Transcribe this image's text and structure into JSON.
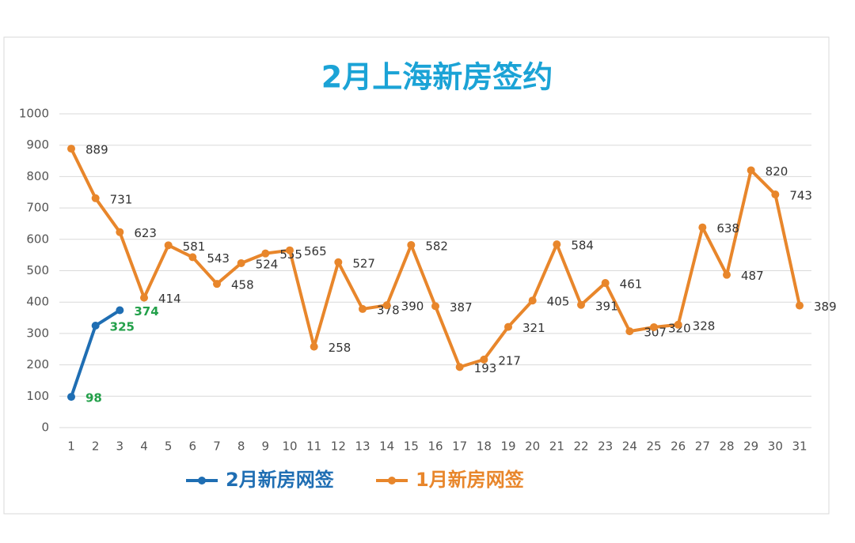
{
  "chart_data": {
    "type": "line",
    "title": "2月上海新房签约",
    "categories": [
      "1",
      "2",
      "3",
      "4",
      "5",
      "6",
      "7",
      "8",
      "9",
      "10",
      "11",
      "12",
      "13",
      "14",
      "15",
      "16",
      "17",
      "18",
      "19",
      "20",
      "21",
      "22",
      "23",
      "24",
      "25",
      "26",
      "27",
      "28",
      "29",
      "30",
      "31"
    ],
    "series": [
      {
        "name": "2月新房网签",
        "color": "#1f6eb3",
        "label_color": "#23a04a",
        "values": [
          98,
          325,
          374,
          null,
          null,
          null,
          null,
          null,
          null,
          null,
          null,
          null,
          null,
          null,
          null,
          null,
          null,
          null,
          null,
          null,
          null,
          null,
          null,
          null,
          null,
          null,
          null,
          null,
          null,
          null,
          null
        ]
      },
      {
        "name": "1月新房网签",
        "color": "#e8862b",
        "label_color": "#333333",
        "values": [
          889,
          731,
          623,
          414,
          581,
          543,
          458,
          524,
          555,
          565,
          258,
          527,
          378,
          390,
          582,
          387,
          193,
          217,
          321,
          405,
          584,
          391,
          461,
          307,
          320,
          328,
          638,
          487,
          820,
          743,
          389
        ]
      }
    ],
    "ylim": [
      0,
      1000
    ],
    "yticks": [
      0,
      100,
      200,
      300,
      400,
      500,
      600,
      700,
      800,
      900,
      1000
    ],
    "grid": true,
    "legend": "bottom"
  }
}
